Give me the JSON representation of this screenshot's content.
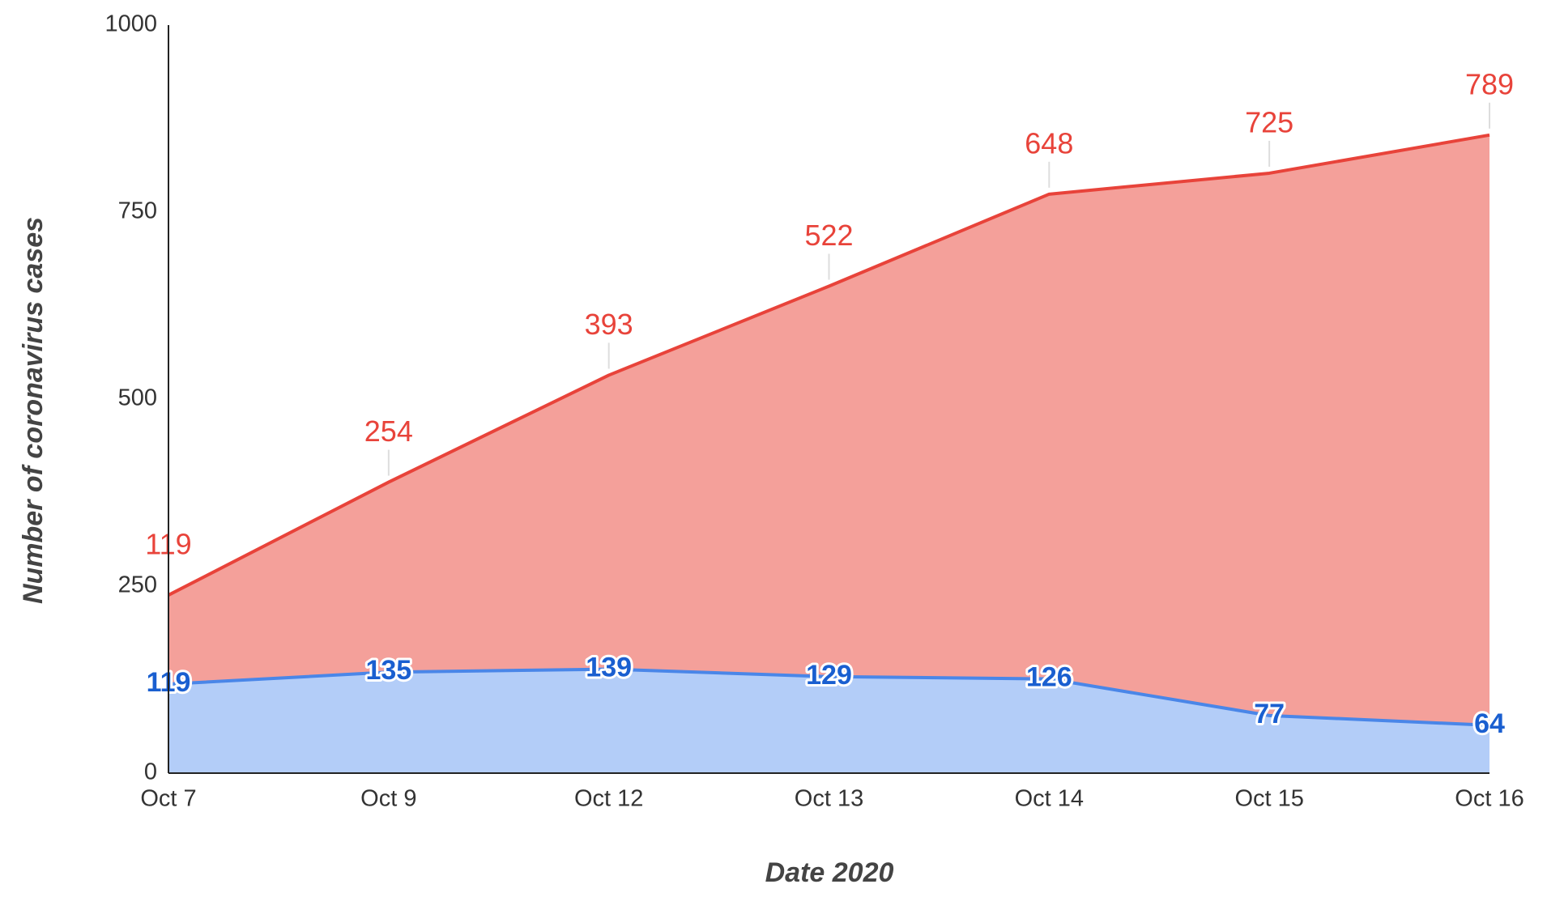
{
  "chart_data": {
    "type": "area",
    "stacked": true,
    "x_label": "Date 2020",
    "y_label": "Number of coronavirus cases",
    "categories": [
      "Oct 7",
      "Oct 9",
      "Oct 12",
      "Oct 13",
      "Oct 14",
      "Oct 15",
      "Oct 16"
    ],
    "series": [
      {
        "color": "#4a86e8",
        "fill": "#b3cdf8",
        "values": [
          119,
          135,
          139,
          129,
          126,
          77,
          64
        ]
      },
      {
        "color": "#e8433a",
        "fill": "#f4a09a",
        "values": [
          119,
          254,
          393,
          522,
          648,
          725,
          789
        ]
      }
    ],
    "ylim": [
      0,
      1000
    ],
    "yticks": [
      0,
      250,
      500,
      750,
      1000
    ],
    "grid": false
  }
}
